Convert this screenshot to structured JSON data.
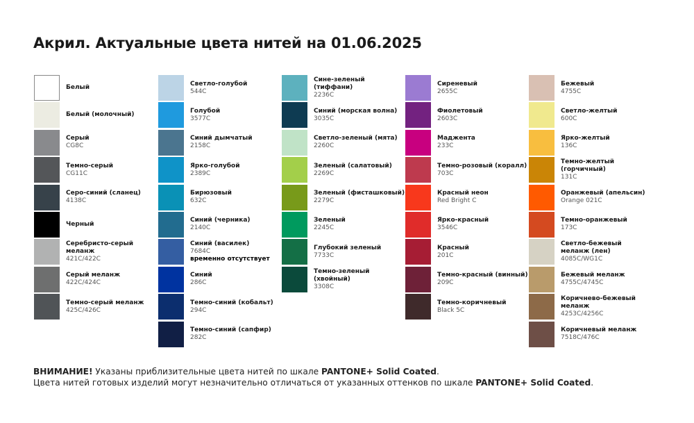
{
  "title": "Акрил. Актуальные цвета нитей на 01.06.2025",
  "columns": [
    [
      {
        "name": "Белый",
        "code": "",
        "color": "#ffffff"
      },
      {
        "name": "Белый (молочный)",
        "code": "",
        "color": "#ecece2"
      },
      {
        "name": "Серый",
        "code": "CG8C",
        "color": "#898a8d"
      },
      {
        "name": "Темно-серый",
        "code": "CG11C",
        "color": "#545659"
      },
      {
        "name": "Серо-синий (сланец)",
        "code": "4138C",
        "color": "#37424a"
      },
      {
        "name": "Черный",
        "code": "",
        "color": "#000000"
      },
      {
        "name": "Серебристо-серый меланж",
        "code": "421C/422C",
        "color": "#b1b2b2"
      },
      {
        "name": "Серый меланж",
        "code": "422C/424C",
        "color": "#6e6f6f"
      },
      {
        "name": "Темно-серый меланж",
        "code": "425C/426C",
        "color": "#505457"
      }
    ],
    [
      {
        "name": "Светло-голубой",
        "code": "544C",
        "color": "#bcd4e6"
      },
      {
        "name": "Голубой",
        "code": "3577C",
        "color": "#1f9ade"
      },
      {
        "name": "Синий дымчатый",
        "code": "2158C",
        "color": "#4b758f"
      },
      {
        "name": "Ярко-голубой",
        "code": "2389C",
        "color": "#0f93c8"
      },
      {
        "name": "Бирюзовый",
        "code": "632C",
        "color": "#0a91b6"
      },
      {
        "name": "Синий (черника)",
        "code": "2140C",
        "color": "#226c8f"
      },
      {
        "name": "Синий (василек)",
        "code": "7684C",
        "note": "временно отсутствует",
        "color": "#345ea2"
      },
      {
        "name": "Синий",
        "code": "286C",
        "color": "#0033a0"
      },
      {
        "name": "Темно-синий (кобальт)",
        "code": "294C",
        "color": "#0c2e6e"
      },
      {
        "name": "Темно-синий (сапфир)",
        "code": "282C",
        "color": "#111f45"
      }
    ],
    [
      {
        "name": "Сине-зеленый (тиффани)",
        "code": "2236C",
        "color": "#5db1be"
      },
      {
        "name": "Синий (морская волна)",
        "code": "3035C",
        "color": "#0e3b52"
      },
      {
        "name": "Светло-зеленый (мята)",
        "code": "2260C",
        "color": "#c0e3c7"
      },
      {
        "name": "Зеленый (салатовый)",
        "code": "2269C",
        "color": "#a3cf4a"
      },
      {
        "name": "Зеленый (фисташковый)",
        "code": "2279C",
        "color": "#789a1a"
      },
      {
        "name": "Зеленый",
        "code": "2245C",
        "color": "#009a5e"
      },
      {
        "name": "Глубокий зеленый",
        "code": "7733C",
        "color": "#146f46"
      },
      {
        "name": "Темно-зеленый (хвойный)",
        "code": "3308C",
        "color": "#0b4a3b"
      }
    ],
    [
      {
        "name": "Сиреневый",
        "code": "2655C",
        "color": "#9b7bd2"
      },
      {
        "name": "Фиолетовый",
        "code": "2603C",
        "color": "#732280"
      },
      {
        "name": "Маджента",
        "code": "233C",
        "color": "#c8007f"
      },
      {
        "name": "Темно-розовый (коралл)",
        "code": "703C",
        "color": "#be3a4e"
      },
      {
        "name": "Красный неон",
        "code": "Red Bright C",
        "color": "#f8381c"
      },
      {
        "name": "Ярко-красный",
        "code": "3546C",
        "color": "#e02c2a"
      },
      {
        "name": "Красный",
        "code": "201C",
        "color": "#a61d34"
      },
      {
        "name": "Темно-красный (винный)",
        "code": "209C",
        "color": "#6e2138"
      },
      {
        "name": "Темно-коричневый",
        "code": "Black 5C",
        "color": "#3f2a2b"
      }
    ],
    [
      {
        "name": "Бежевый",
        "code": "4755C",
        "color": "#d9c0b3"
      },
      {
        "name": "Светло-желтый",
        "code": "600C",
        "color": "#f0e98e"
      },
      {
        "name": "Ярко-желтый",
        "code": "136C",
        "color": "#f8be3f"
      },
      {
        "name": "Темно-желтый (горчичный)",
        "code": "131C",
        "color": "#ca8506"
      },
      {
        "name": "Оранжевый (апельсин)",
        "code": "Orange 021C",
        "color": "#ff5a00"
      },
      {
        "name": "Темно-оранжевый",
        "code": "173C",
        "color": "#d44a20"
      },
      {
        "name": "Светло-бежевый меланж (лен)",
        "code": "4085C/WG1C",
        "color": "#d6d2c4"
      },
      {
        "name": "Бежевый меланж",
        "code": "4755C/4745C",
        "color": "#b99b6b"
      },
      {
        "name": "Коричнево-бежевый меланж",
        "code": "4253C/4256C",
        "color": "#8d6a48"
      },
      {
        "name": "Коричневый меланж",
        "code": "7518C/476C",
        "color": "#6e4f47"
      }
    ]
  ],
  "footer": {
    "line1_bold": "ВНИМАНИЕ!",
    "line1_text": " Указаны приблизительные цвета нитей по шкале ",
    "line1_scale": "PANTONE+ Solid Coated",
    "line1_end": ".",
    "line2_text": "Цвета нитей готовых изделий могут незначительно отличаться от указанных оттенков по шкале ",
    "line2_scale": "PANTONE+ Solid Coated",
    "line2_end": "."
  }
}
